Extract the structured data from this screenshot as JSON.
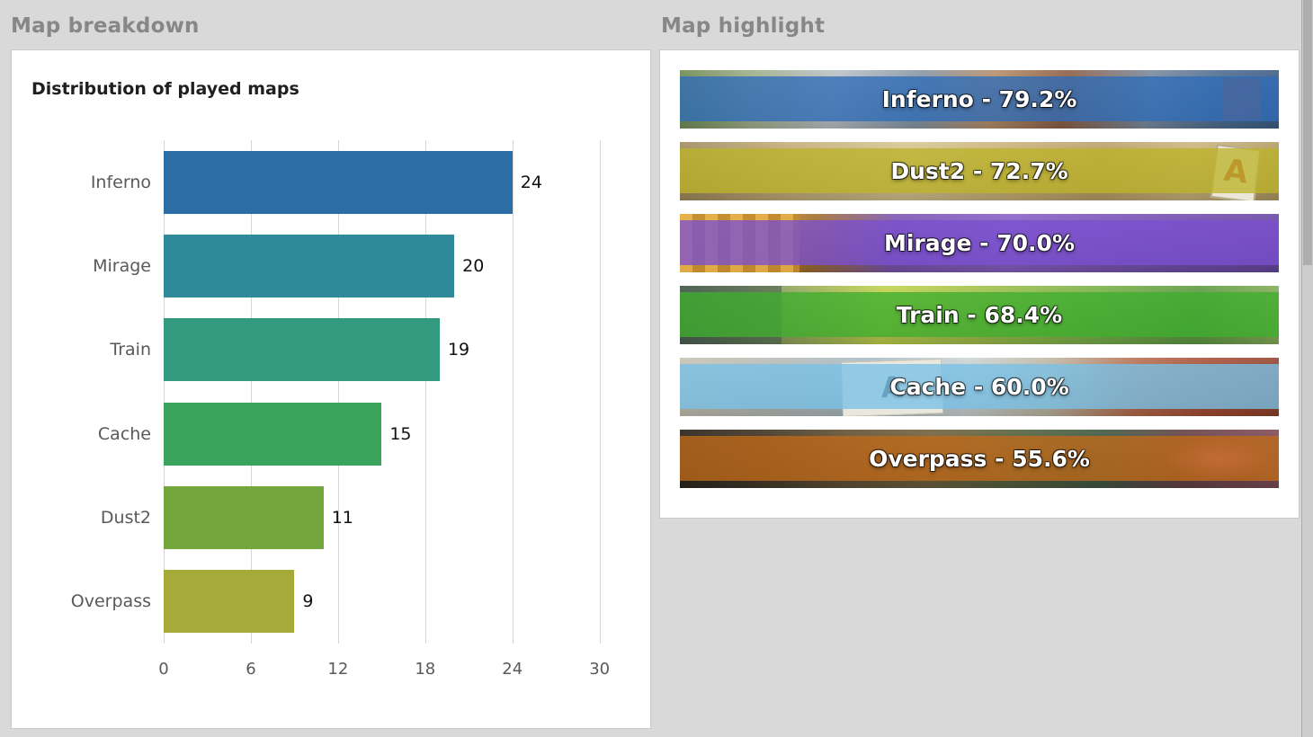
{
  "panels": {
    "breakdown": {
      "header": "Map breakdown"
    },
    "highlight": {
      "header": "Map highlight",
      "banners": [
        {
          "map": "inferno",
          "label": "Inferno - 79.2%",
          "band_color": "#2f6db8"
        },
        {
          "map": "dust2",
          "label": "Dust2 - 72.7%",
          "band_color": "#bdb32a"
        },
        {
          "map": "mirage",
          "label": "Mirage - 70.0%",
          "band_color": "#7b4fd0"
        },
        {
          "map": "train",
          "label": "Train - 68.4%",
          "band_color": "#3fae2e"
        },
        {
          "map": "cache",
          "label": "Cache - 60.0%",
          "band_color": "#79c2e8"
        },
        {
          "map": "overpass",
          "label": "Overpass - 55.6%",
          "band_color": "#c06a1a"
        }
      ]
    }
  },
  "chart_data": {
    "type": "bar",
    "orientation": "horizontal",
    "title": "Distribution of played maps",
    "categories": [
      "Inferno",
      "Mirage",
      "Train",
      "Cache",
      "Dust2",
      "Overpass"
    ],
    "values": [
      24,
      20,
      19,
      15,
      11,
      9
    ],
    "bar_colors": [
      "#2c6da6",
      "#2e8a99",
      "#33997f",
      "#3aa45c",
      "#74a63e",
      "#a6aa39"
    ],
    "xticks": [
      0,
      6,
      12,
      18,
      24,
      30
    ],
    "xlim": [
      0,
      32
    ],
    "xlabel": "",
    "ylabel": "",
    "grid": true,
    "legend": false
  }
}
